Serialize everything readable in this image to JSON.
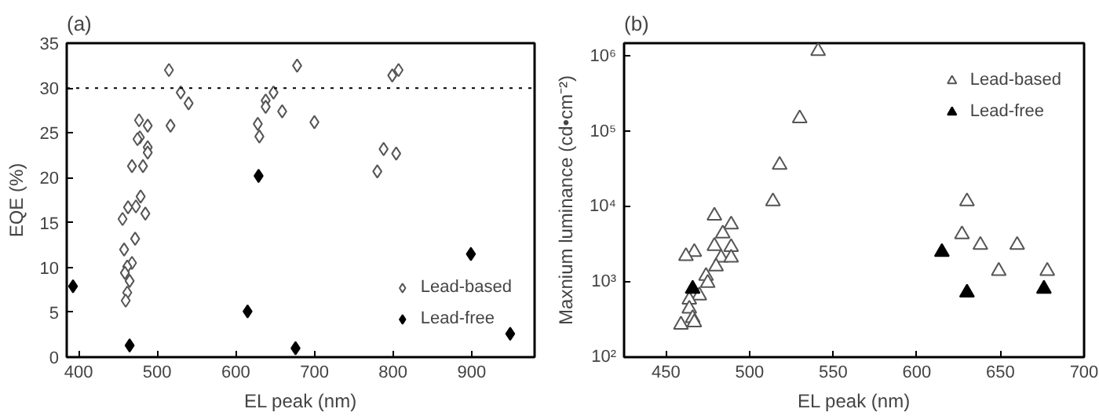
{
  "chart_data": [
    {
      "type": "scatter",
      "title": "(a)",
      "xlabel": "EL peak (nm)",
      "ylabel": "EQE (%)",
      "xlim": [
        385,
        980
      ],
      "ylim": [
        0,
        35
      ],
      "xticks": [
        400,
        500,
        600,
        700,
        800,
        900
      ],
      "yticks": [
        0,
        5,
        10,
        15,
        20,
        25,
        30,
        35
      ],
      "marker": "diamond",
      "legend": "bottom right",
      "grid": false,
      "ref_lines": [
        {
          "axis": "y",
          "value": 30,
          "line_style": "dotted",
          "color": "#000000"
        }
      ],
      "series": [
        {
          "name": "Lead-based",
          "color": "#ffffff",
          "x": [
            515,
            530,
            540,
            517,
            477,
            488,
            478,
            475,
            488,
            488,
            468,
            482,
            479,
            473,
            463,
            485,
            456,
            472,
            458,
            468,
            462,
            459,
            465,
            462,
            460,
            678,
            648,
            638,
            638,
            659,
            628,
            630,
            700,
            807,
            799,
            788,
            804,
            780
          ],
          "values": [
            32.0,
            29.5,
            28.3,
            25.8,
            26.4,
            25.8,
            24.5,
            24.3,
            23.4,
            22.8,
            21.3,
            21.3,
            17.9,
            16.8,
            16.7,
            16.0,
            15.4,
            13.2,
            12.0,
            10.5,
            10.1,
            9.4,
            8.5,
            7.2,
            6.3,
            32.5,
            29.5,
            28.6,
            27.9,
            27.4,
            26.0,
            24.6,
            26.2,
            32.0,
            31.4,
            23.2,
            22.7,
            20.7
          ]
        },
        {
          "name": "Lead-free",
          "color": "#000000",
          "x": [
            393,
            465,
            629,
            615,
            676,
            899,
            949
          ],
          "values": [
            7.9,
            1.3,
            20.2,
            5.1,
            1.0,
            11.5,
            2.6
          ]
        }
      ]
    },
    {
      "type": "scatter",
      "title": "(b)",
      "xlabel": "EL peak (nm)",
      "ylabel": "Maxnium luminance (cd•cm⁻²)",
      "xlim": [
        425,
        700
      ],
      "ylim": [
        100,
        1500000
      ],
      "log": "y",
      "xticks": [
        450,
        500,
        550,
        600,
        650,
        700
      ],
      "yticks": [
        {
          "value": 100,
          "label": "10²"
        },
        {
          "value": 1000,
          "label": "10³"
        },
        {
          "value": 10000,
          "label": "10⁴"
        },
        {
          "value": 100000,
          "label": "10⁵"
        },
        {
          "value": 1000000,
          "label": "10⁶"
        }
      ],
      "marker": "triangle",
      "legend": "top right",
      "grid": false,
      "series": [
        {
          "name": "Lead-based",
          "color": "#ffffff",
          "x": [
            541,
            530,
            518,
            514,
            479,
            489,
            484,
            489,
            479,
            467,
            462,
            483,
            489,
            480,
            474,
            475,
            470,
            464,
            464,
            466,
            467,
            459,
            630,
            627,
            638,
            660,
            649,
            678
          ],
          "values": [
            1180000,
            150000,
            36000,
            11800,
            7600,
            5800,
            4400,
            2900,
            3000,
            2500,
            2200,
            2100,
            2100,
            1600,
            1200,
            970,
            660,
            580,
            440,
            330,
            290,
            270,
            11800,
            4300,
            3100,
            3100,
            1400,
            1400
          ]
        },
        {
          "name": "Lead-free",
          "color": "#000000",
          "x": [
            466,
            615,
            630,
            676
          ],
          "values": [
            810,
            2500,
            720,
            810
          ]
        }
      ]
    }
  ]
}
